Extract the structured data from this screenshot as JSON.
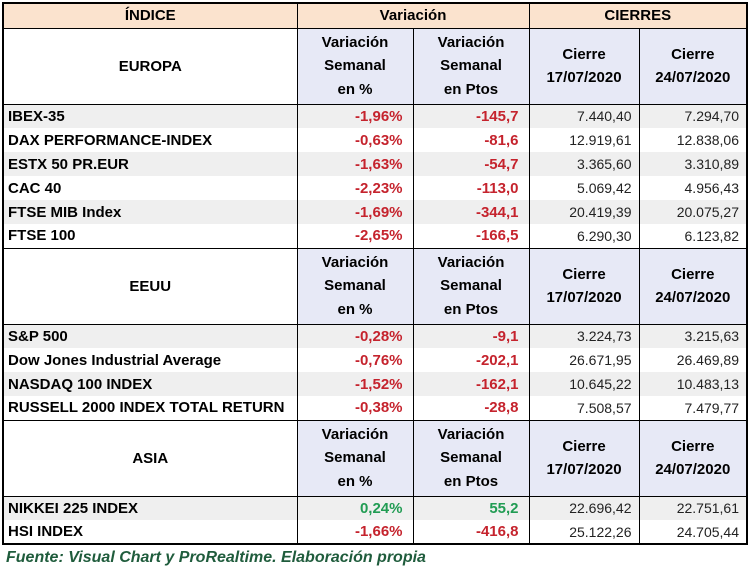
{
  "title_row": {
    "indice": "ÍNDICE",
    "variacion": "Variación",
    "cierres": "CIERRES"
  },
  "column_headers": {
    "pct": "Variación\nSemanal\nen %",
    "pts": "Variación\nSemanal\nen Ptos",
    "close_prev": "Cierre\n17/07/2020",
    "close_last": "Cierre\n24/07/2020"
  },
  "sections": [
    {
      "name": "EUROPA",
      "rows": [
        {
          "name": "IBEX-35",
          "pct": "-1,96%",
          "pts": "-145,7",
          "close_prev": "7.440,40",
          "close_last": "7.294,70",
          "trend": "down"
        },
        {
          "name": "DAX PERFORMANCE-INDEX",
          "pct": "-0,63%",
          "pts": "-81,6",
          "close_prev": "12.919,61",
          "close_last": "12.838,06",
          "trend": "down"
        },
        {
          "name": "ESTX 50 PR.EUR",
          "pct": "-1,63%",
          "pts": "-54,7",
          "close_prev": "3.365,60",
          "close_last": "3.310,89",
          "trend": "down"
        },
        {
          "name": "CAC 40",
          "pct": "-2,23%",
          "pts": "-113,0",
          "close_prev": "5.069,42",
          "close_last": "4.956,43",
          "trend": "down"
        },
        {
          "name": "FTSE MIB Index",
          "pct": "-1,69%",
          "pts": "-344,1",
          "close_prev": "20.419,39",
          "close_last": "20.075,27",
          "trend": "down"
        },
        {
          "name": "FTSE 100",
          "pct": "-2,65%",
          "pts": "-166,5",
          "close_prev": "6.290,30",
          "close_last": "6.123,82",
          "trend": "down"
        }
      ]
    },
    {
      "name": "EEUU",
      "rows": [
        {
          "name": "S&P 500",
          "pct": "-0,28%",
          "pts": "-9,1",
          "close_prev": "3.224,73",
          "close_last": "3.215,63",
          "trend": "down"
        },
        {
          "name": "Dow Jones Industrial Average",
          "pct": "-0,76%",
          "pts": "-202,1",
          "close_prev": "26.671,95",
          "close_last": "26.469,89",
          "trend": "down"
        },
        {
          "name": "NASDAQ 100 INDEX",
          "pct": "-1,52%",
          "pts": "-162,1",
          "close_prev": "10.645,22",
          "close_last": "10.483,13",
          "trend": "down"
        },
        {
          "name": "RUSSELL 2000 INDEX TOTAL RETURN",
          "pct": "-0,38%",
          "pts": "-28,8",
          "close_prev": "7.508,57",
          "close_last": "7.479,77",
          "trend": "down"
        }
      ]
    },
    {
      "name": "ASIA",
      "rows": [
        {
          "name": "NIKKEI 225 INDEX",
          "pct": "0,24%",
          "pts": "55,2",
          "close_prev": "22.696,42",
          "close_last": "22.751,61",
          "trend": "up"
        },
        {
          "name": "HSI INDEX",
          "pct": "-1,66%",
          "pts": "-416,8",
          "close_prev": "25.122,26",
          "close_last": "24.705,44",
          "trend": "down"
        }
      ]
    }
  ],
  "footer": "Fuente: Visual Chart y ProRealtime. Elaboración propia",
  "colors": {
    "header_bg": "#FBE3CE",
    "subheader_bg": "#E7E9F6",
    "stripe_bg": "#EFEFEF",
    "negative": "#C5232D",
    "positive": "#219C53",
    "footer_text": "#1F5C3C"
  }
}
